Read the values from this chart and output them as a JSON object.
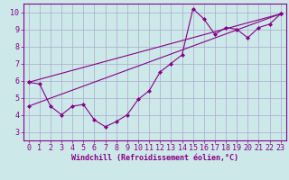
{
  "xlabel": "Windchill (Refroidissement éolien,°C)",
  "background_color": "#cce8e8",
  "grid_color": "#aaaacc",
  "line_color": "#880088",
  "xlim": [
    -0.5,
    23.5
  ],
  "ylim": [
    2.5,
    10.5
  ],
  "xticks": [
    0,
    1,
    2,
    3,
    4,
    5,
    6,
    7,
    8,
    9,
    10,
    11,
    12,
    13,
    14,
    15,
    16,
    17,
    18,
    19,
    20,
    21,
    22,
    23
  ],
  "yticks": [
    3,
    4,
    5,
    6,
    7,
    8,
    9,
    10
  ],
  "line1_x": [
    0,
    1,
    2,
    3,
    4,
    5,
    6,
    7,
    8,
    9,
    10,
    11,
    12,
    13,
    14,
    15,
    16,
    17,
    18,
    19,
    20,
    21,
    22,
    23
  ],
  "line1_y": [
    5.9,
    5.8,
    4.5,
    4.0,
    4.5,
    4.6,
    3.7,
    3.3,
    3.6,
    4.0,
    4.9,
    5.4,
    6.5,
    7.0,
    7.5,
    10.2,
    9.6,
    8.7,
    9.1,
    9.0,
    8.5,
    9.1,
    9.3,
    9.9
  ],
  "line2_x": [
    0,
    23
  ],
  "line2_y": [
    5.9,
    9.9
  ],
  "line3_x": [
    0,
    23
  ],
  "line3_y": [
    4.5,
    9.9
  ],
  "xlabel_fontsize": 6,
  "tick_fontsize": 6,
  "marker": "D",
  "marker_size": 2.0,
  "linewidth": 0.8
}
